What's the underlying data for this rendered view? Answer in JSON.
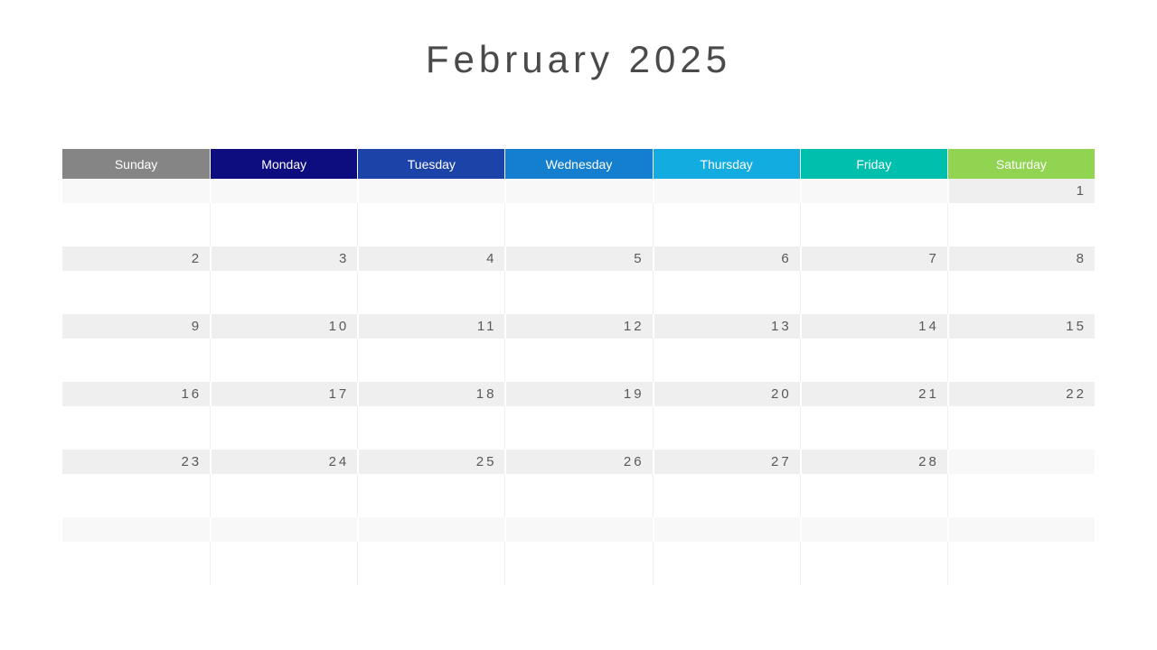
{
  "title": "February 2025",
  "weekday_headers": [
    {
      "label": "Sunday",
      "color": "#858585"
    },
    {
      "label": "Monday",
      "color": "#0d0d80"
    },
    {
      "label": "Tuesday",
      "color": "#1c43a8"
    },
    {
      "label": "Wednesday",
      "color": "#147fce"
    },
    {
      "label": "Thursday",
      "color": "#12ace0"
    },
    {
      "label": "Friday",
      "color": "#00bfad"
    },
    {
      "label": "Saturday",
      "color": "#90d452"
    }
  ],
  "colors": {
    "title_text": "#4a4a4a",
    "day_number": "#595959",
    "in_month_strip": "#efefef",
    "out_month_strip": "#f8f8f8",
    "grid_line": "#efeff1"
  },
  "weeks": [
    [
      {
        "day": "",
        "in_month": false
      },
      {
        "day": "",
        "in_month": false
      },
      {
        "day": "",
        "in_month": false
      },
      {
        "day": "",
        "in_month": false
      },
      {
        "day": "",
        "in_month": false
      },
      {
        "day": "",
        "in_month": false
      },
      {
        "day": "1",
        "in_month": true
      }
    ],
    [
      {
        "day": "2",
        "in_month": true
      },
      {
        "day": "3",
        "in_month": true
      },
      {
        "day": "4",
        "in_month": true
      },
      {
        "day": "5",
        "in_month": true
      },
      {
        "day": "6",
        "in_month": true
      },
      {
        "day": "7",
        "in_month": true
      },
      {
        "day": "8",
        "in_month": true
      }
    ],
    [
      {
        "day": "9",
        "in_month": true
      },
      {
        "day": "10",
        "in_month": true
      },
      {
        "day": "11",
        "in_month": true
      },
      {
        "day": "12",
        "in_month": true
      },
      {
        "day": "13",
        "in_month": true
      },
      {
        "day": "14",
        "in_month": true
      },
      {
        "day": "15",
        "in_month": true
      }
    ],
    [
      {
        "day": "16",
        "in_month": true
      },
      {
        "day": "17",
        "in_month": true
      },
      {
        "day": "18",
        "in_month": true
      },
      {
        "day": "19",
        "in_month": true
      },
      {
        "day": "20",
        "in_month": true
      },
      {
        "day": "21",
        "in_month": true
      },
      {
        "day": "22",
        "in_month": true
      }
    ],
    [
      {
        "day": "23",
        "in_month": true
      },
      {
        "day": "24",
        "in_month": true
      },
      {
        "day": "25",
        "in_month": true
      },
      {
        "day": "26",
        "in_month": true
      },
      {
        "day": "27",
        "in_month": true
      },
      {
        "day": "28",
        "in_month": true
      },
      {
        "day": "",
        "in_month": false
      }
    ],
    [
      {
        "day": "",
        "in_month": false
      },
      {
        "day": "",
        "in_month": false
      },
      {
        "day": "",
        "in_month": false
      },
      {
        "day": "",
        "in_month": false
      },
      {
        "day": "",
        "in_month": false
      },
      {
        "day": "",
        "in_month": false
      },
      {
        "day": "",
        "in_month": false
      }
    ]
  ]
}
